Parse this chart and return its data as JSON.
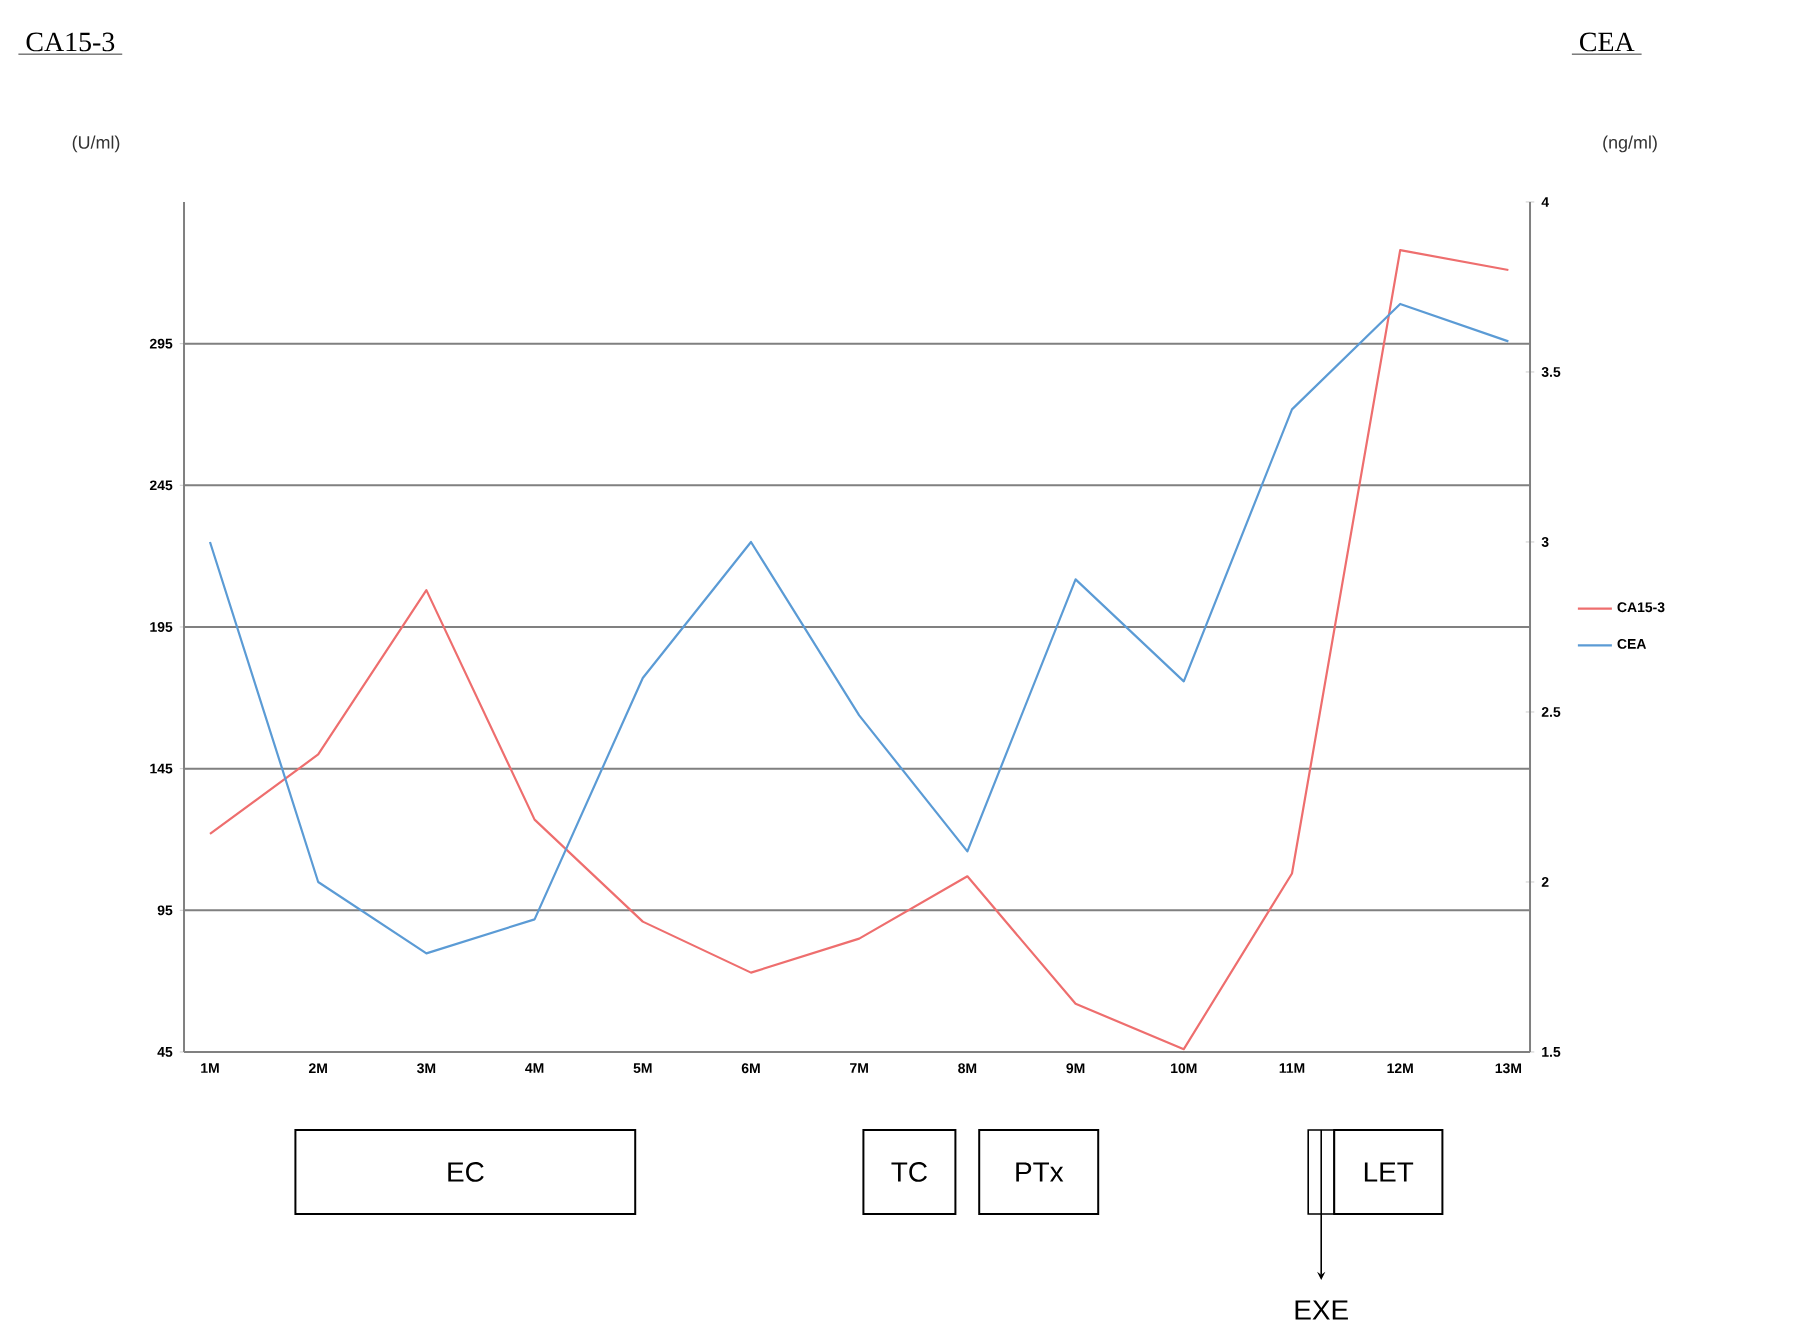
{
  "chart_data": {
    "type": "line",
    "categories": [
      "1M",
      "2M",
      "3M",
      "4M",
      "5M",
      "6M",
      "7M",
      "8M",
      "9M",
      "10M",
      "11M",
      "12M",
      "13M"
    ],
    "series": [
      {
        "name": "CA15-3",
        "color": "#ee6e6e",
        "values": [
          122,
          150,
          208,
          127,
          91,
          73,
          85,
          107,
          62,
          46,
          108,
          328,
          321
        ]
      },
      {
        "name": "CEA",
        "color": "#5b9bd5",
        "axis": "y2",
        "values": [
          3.0,
          2.0,
          1.79,
          1.89,
          2.6,
          3.0,
          2.49,
          2.09,
          2.89,
          2.59,
          3.39,
          3.7,
          3.59
        ]
      }
    ],
    "ylabel": "(U/ml)",
    "y2label": "(ng/ml)",
    "ylim": [
      45,
      345
    ],
    "yticks": [
      45,
      95,
      145,
      195,
      245,
      295
    ],
    "y2lim": [
      1.5,
      4
    ],
    "y2ticks": [
      1.5,
      2,
      2.5,
      3,
      3.5,
      4
    ],
    "grid": "y",
    "legend": "right",
    "marker": "none",
    "line_style": "solid",
    "annotations": [
      "CA15-3",
      "CEA",
      "EC",
      "TC",
      "PTx",
      "LET",
      "EXE"
    ]
  }
}
